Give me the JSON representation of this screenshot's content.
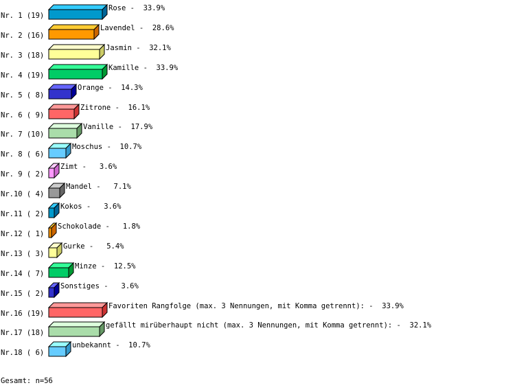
{
  "chart_data": {
    "type": "bar",
    "orientation": "horizontal",
    "style": "3d",
    "rows": [
      {
        "rank": "Nr. 1",
        "count": 19,
        "label": "Rose",
        "percent": "33.9%"
      },
      {
        "rank": "Nr. 2",
        "count": 16,
        "label": "Lavendel",
        "percent": "28.6%"
      },
      {
        "rank": "Nr. 3",
        "count": 18,
        "label": "Jasmin",
        "percent": "32.1%"
      },
      {
        "rank": "Nr. 4",
        "count": 19,
        "label": "Kamille",
        "percent": "33.9%"
      },
      {
        "rank": "Nr. 5",
        "count": 8,
        "label": "Orange",
        "percent": "14.3%"
      },
      {
        "rank": "Nr. 6",
        "count": 9,
        "label": "Zitrone",
        "percent": "16.1%"
      },
      {
        "rank": "Nr. 7",
        "count": 10,
        "label": "Vanille",
        "percent": "17.9%"
      },
      {
        "rank": "Nr. 8",
        "count": 6,
        "label": "Moschus",
        "percent": "10.7%"
      },
      {
        "rank": "Nr. 9",
        "count": 2,
        "label": "Zimt",
        "percent": "3.6%"
      },
      {
        "rank": "Nr.10",
        "count": 4,
        "label": "Mandel",
        "percent": "7.1%"
      },
      {
        "rank": "Nr.11",
        "count": 2,
        "label": "Kokos",
        "percent": "3.6%"
      },
      {
        "rank": "Nr.12",
        "count": 1,
        "label": "Schokolade",
        "percent": "1.8%"
      },
      {
        "rank": "Nr.13",
        "count": 3,
        "label": "Gurke",
        "percent": "5.4%"
      },
      {
        "rank": "Nr.14",
        "count": 7,
        "label": "Minze",
        "percent": "12.5%"
      },
      {
        "rank": "Nr.15",
        "count": 2,
        "label": "Sonstiges",
        "percent": "3.6%"
      },
      {
        "rank": "Nr.16",
        "count": 19,
        "label": "Favoriten Rangfolge (max. 3 Nennungen, mit Komma getrennt):",
        "percent": "33.9%"
      },
      {
        "rank": "Nr.17",
        "count": 18,
        "label": "gefällt mirüberhaupt nicht (max. 3 Nennungen, mit Komma getrennt):",
        "percent": "32.1%"
      },
      {
        "rank": "Nr.18",
        "count": 6,
        "label": "unbekannt",
        "percent": "10.7%"
      }
    ],
    "palette": [
      {
        "front": "#0099cc",
        "top": "#33ccff",
        "side": "#006699"
      },
      {
        "front": "#ff9900",
        "top": "#ffcc33",
        "side": "#cc6600"
      },
      {
        "front": "#ffff99",
        "top": "#ffffcc",
        "side": "#cccc66"
      },
      {
        "front": "#00cc66",
        "top": "#33ff99",
        "side": "#009933"
      },
      {
        "front": "#3333cc",
        "top": "#6666ff",
        "side": "#000099"
      },
      {
        "front": "#ff6666",
        "top": "#ff9999",
        "side": "#cc3333"
      },
      {
        "front": "#aaddaa",
        "top": "#ddffdd",
        "side": "#669966"
      },
      {
        "front": "#66ccff",
        "top": "#99ffff",
        "side": "#3399cc"
      },
      {
        "front": "#ff99ff",
        "top": "#ffccff",
        "side": "#cc66cc"
      },
      {
        "front": "#999999",
        "top": "#cccccc",
        "side": "#666666"
      }
    ],
    "total_label": "Gesamt: n=56"
  }
}
